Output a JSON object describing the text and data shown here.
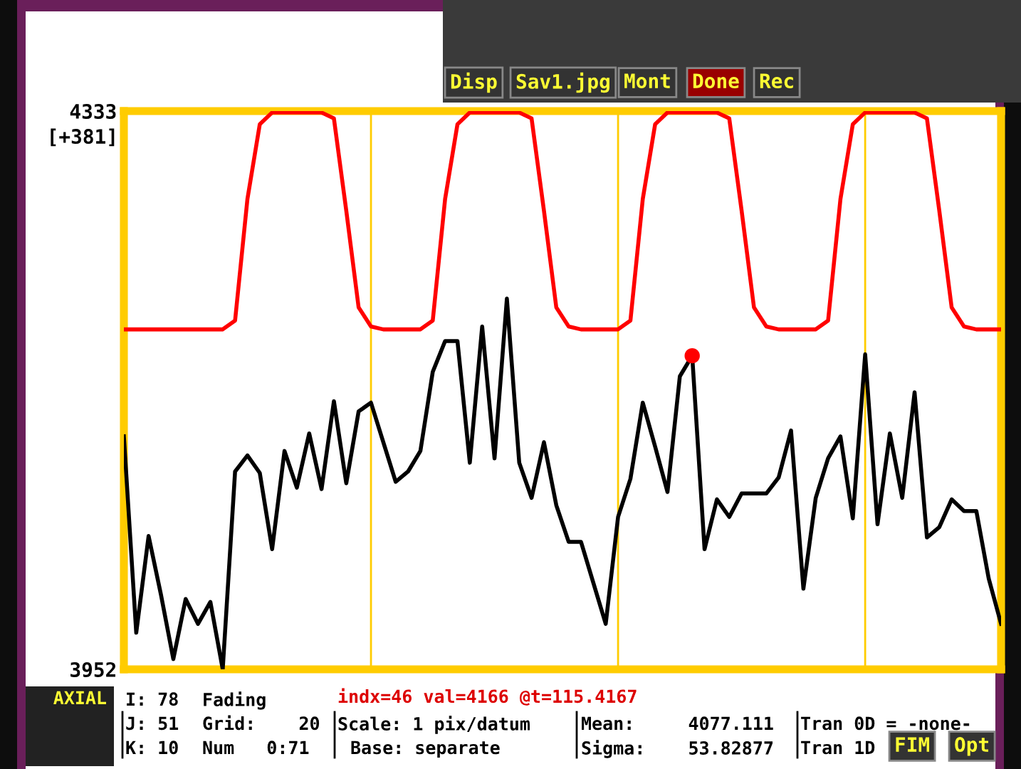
{
  "chart_data": {
    "type": "line",
    "categories": [
      null,
      null,
      null,
      null,
      null,
      null,
      null,
      null,
      null,
      null,
      null,
      null,
      null,
      null,
      null,
      null,
      null,
      null,
      null,
      null,
      null,
      null,
      null,
      null,
      null,
      null,
      null,
      null,
      null,
      null,
      null,
      null,
      null,
      null,
      null,
      null,
      null,
      null,
      null,
      null,
      null,
      null,
      null,
      null,
      null,
      null,
      null,
      null,
      null,
      null,
      null,
      null,
      null,
      null,
      null,
      null,
      null,
      null,
      null,
      null,
      null,
      null,
      null,
      null,
      null,
      null,
      null,
      null,
      null,
      null,
      null,
      null
    ],
    "series": [
      {
        "color": "#ff0000",
        "values": [
          4184,
          4184,
          4184,
          4184,
          4184,
          4184,
          4184,
          4184,
          4184,
          4190,
          4273,
          4324,
          4332,
          4332,
          4332,
          4332,
          4332,
          4328,
          4265,
          4199,
          4186,
          4184,
          4184,
          4184,
          4184,
          4190,
          4273,
          4324,
          4332,
          4332,
          4332,
          4332,
          4332,
          4328,
          4265,
          4199,
          4186,
          4184,
          4184,
          4184,
          4184,
          4190,
          4273,
          4324,
          4332,
          4332,
          4332,
          4332,
          4332,
          4328,
          4265,
          4199,
          4186,
          4184,
          4184,
          4184,
          4184,
          4190,
          4273,
          4324,
          4332,
          4332,
          4332,
          4332,
          4332,
          4328,
          4265,
          4199,
          4186,
          4184,
          4184,
          4184
        ]
      },
      {
        "color": "#000000",
        "values": [
          4111,
          3977,
          4043,
          4003,
          3959,
          4000,
          3983,
          3998,
          3952,
          4087,
          4098,
          4086,
          4034,
          4101,
          4076,
          4113,
          4075,
          4135,
          4079,
          4128,
          4134,
          4107,
          4080,
          4087,
          4101,
          4155,
          4176,
          4176,
          4093,
          4186,
          4096,
          4205,
          4093,
          4069,
          4107,
          4064,
          4039,
          4039,
          4011,
          3983,
          4056,
          4082,
          4134,
          4104,
          4073,
          4152,
          4166,
          4034,
          4068,
          4056,
          4072,
          4072,
          4072,
          4083,
          4115,
          4007,
          4069,
          4096,
          4111,
          4055,
          4167,
          4051,
          4113,
          4069,
          4141,
          4042,
          4049,
          4068,
          4060,
          4060,
          4014,
          3983
        ]
      },
      {
        "type": "scatter",
        "color": "#ff0000",
        "values": [
          null,
          null,
          null,
          null,
          null,
          null,
          null,
          null,
          null,
          null,
          null,
          null,
          null,
          null,
          null,
          null,
          null,
          null,
          null,
          null,
          null,
          null,
          null,
          null,
          null,
          null,
          null,
          null,
          null,
          null,
          null,
          null,
          null,
          null,
          null,
          null,
          null,
          null,
          null,
          null,
          null,
          null,
          null,
          null,
          null,
          null,
          4166,
          null,
          null,
          null,
          null,
          null,
          null,
          null,
          null,
          null,
          null,
          null,
          null,
          null,
          null,
          null,
          null,
          null,
          null,
          null,
          null,
          null,
          null,
          null,
          null,
          null
        ]
      }
    ],
    "ylim": [
      3952,
      4333
    ],
    "yticks": [
      3952,
      4333
    ],
    "ylabel": "[+381]",
    "tick_labels": "y",
    "grid": "x",
    "annotations": [
      "AXIAL",
      "I: 78",
      "J: 51",
      "K: 10",
      "Fading",
      "Grid:    20",
      "Num   0:71",
      "indx=46 val=4166 @t=115.4167",
      "Scale: 1 pix/datum",
      "Base: separate",
      "Mean:     4077.111",
      "Sigma:    53.82877",
      "Tran 0D = -none-",
      "Tran 1D",
      "FIM",
      "Opt",
      "Disp",
      "Sav1.jpg",
      "Mont",
      "Done",
      "Rec"
    ]
  }
}
